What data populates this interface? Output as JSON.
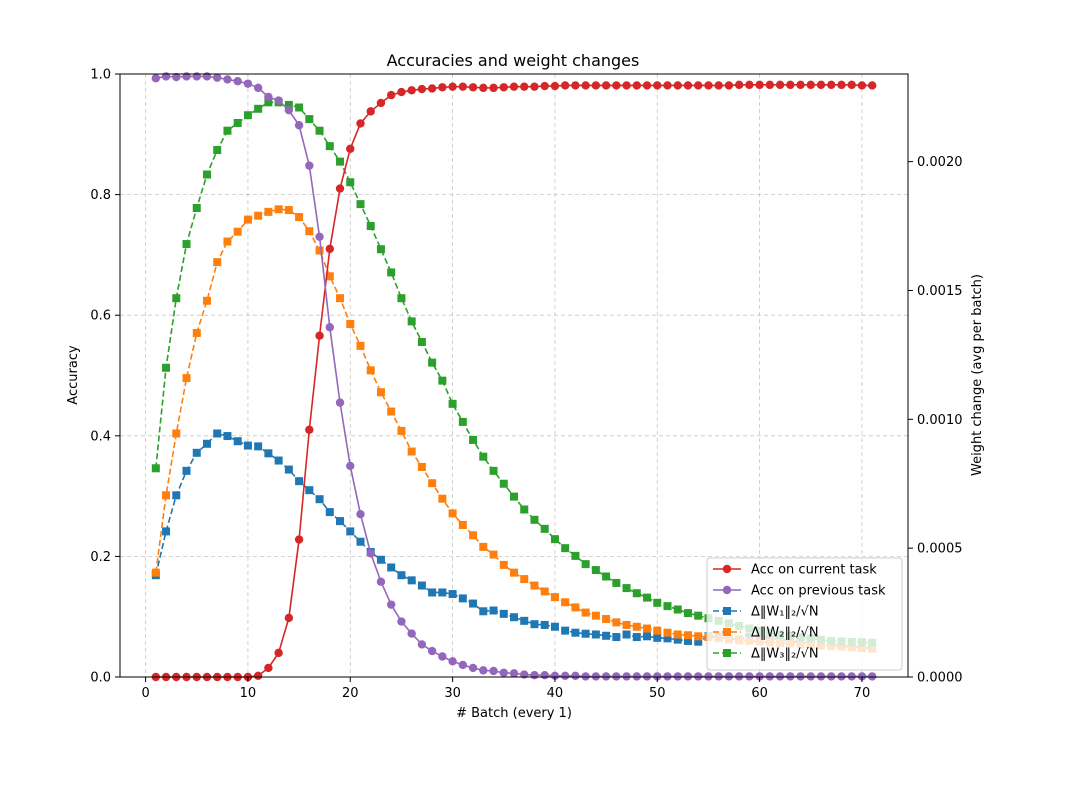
{
  "chart_data": {
    "type": "line",
    "title": "Accuracies and weight changes",
    "xlabel": "# Batch (every 1)",
    "ylabel": "Accuracy",
    "ylabel_right": "Weight change (avg per batch)",
    "xlim": [
      -2.5,
      74.5
    ],
    "ylim": [
      0,
      1.0
    ],
    "ylim_right": [
      0,
      0.00234
    ],
    "x_ticks": [
      0,
      10,
      20,
      30,
      40,
      50,
      60,
      70
    ],
    "y_ticks": [
      "0.0",
      "0.2",
      "0.4",
      "0.6",
      "0.8",
      "1.0"
    ],
    "y_ticks_right": [
      "0.0000",
      "0.0005",
      "0.0010",
      "0.0015",
      "0.0020"
    ],
    "y_right_tick_values": [
      0,
      0.0005,
      0.001,
      0.0015,
      0.002
    ],
    "grid": true,
    "legend_position": "lower right",
    "x": [
      1,
      2,
      3,
      4,
      5,
      6,
      7,
      8,
      9,
      10,
      11,
      12,
      13,
      14,
      15,
      16,
      17,
      18,
      19,
      20,
      21,
      22,
      23,
      24,
      25,
      26,
      27,
      28,
      29,
      30,
      31,
      32,
      33,
      34,
      35,
      36,
      37,
      38,
      39,
      40,
      41,
      42,
      43,
      44,
      45,
      46,
      47,
      48,
      49,
      50,
      51,
      52,
      53,
      54,
      55,
      56,
      57,
      58,
      59,
      60,
      61,
      62,
      63,
      64,
      65,
      66,
      67,
      68,
      69,
      70,
      71
    ],
    "series": [
      {
        "name": "Acc on current task",
        "axis": "left",
        "color": "#d62728",
        "linestyle": "solid",
        "marker": "circle",
        "values": [
          0,
          0,
          0,
          0,
          0,
          0,
          0,
          0,
          0,
          0,
          0.002,
          0.015,
          0.04,
          0.098,
          0.228,
          0.41,
          0.566,
          0.71,
          0.81,
          0.876,
          0.918,
          0.938,
          0.952,
          0.965,
          0.97,
          0.973,
          0.975,
          0.976,
          0.978,
          0.979,
          0.979,
          0.978,
          0.977,
          0.977,
          0.978,
          0.979,
          0.979,
          0.979,
          0.98,
          0.98,
          0.981,
          0.981,
          0.981,
          0.981,
          0.981,
          0.981,
          0.981,
          0.981,
          0.981,
          0.981,
          0.981,
          0.981,
          0.981,
          0.981,
          0.981,
          0.981,
          0.981,
          0.982,
          0.982,
          0.982,
          0.982,
          0.982,
          0.982,
          0.982,
          0.982,
          0.982,
          0.982,
          0.982,
          0.982,
          0.981,
          0.981
        ]
      },
      {
        "name": "Acc on previous task",
        "axis": "left",
        "color": "#9467bd",
        "linestyle": "solid",
        "marker": "circle",
        "values": [
          0.993,
          0.996,
          0.995,
          0.996,
          0.996,
          0.996,
          0.994,
          0.991,
          0.988,
          0.984,
          0.977,
          0.962,
          0.956,
          0.94,
          0.915,
          0.848,
          0.73,
          0.58,
          0.455,
          0.35,
          0.27,
          0.205,
          0.158,
          0.12,
          0.092,
          0.072,
          0.054,
          0.043,
          0.034,
          0.026,
          0.02,
          0.015,
          0.011,
          0.01,
          0.007,
          0.006,
          0.004,
          0.003,
          0.003,
          0.002,
          0.002,
          0.002,
          0.001,
          0.001,
          0.001,
          0.001,
          0.001,
          0.001,
          0.001,
          0.001,
          0.001,
          0.001,
          0.001,
          0.001,
          0.001,
          0.001,
          0.001,
          0.001,
          0.001,
          0.001,
          0.001,
          0.001,
          0.001,
          0.001,
          0.001,
          0.001,
          0.001,
          0.001,
          0.001,
          0.001,
          0.001
        ]
      },
      {
        "name": "Δ‖W₁‖₂/√N",
        "axis": "right",
        "color": "#1f77b4",
        "linestyle": "dashed",
        "marker": "square",
        "values": [
          0.000395,
          0.000565,
          0.000705,
          0.0008,
          0.00087,
          0.000905,
          0.000945,
          0.000935,
          0.000915,
          0.000898,
          0.000895,
          0.000868,
          0.00084,
          0.000805,
          0.00076,
          0.000725,
          0.00069,
          0.00064,
          0.000605,
          0.000565,
          0.000525,
          0.000485,
          0.000455,
          0.000425,
          0.000395,
          0.000375,
          0.000355,
          0.000328,
          0.000328,
          0.000322,
          0.000305,
          0.000285,
          0.000255,
          0.000258,
          0.000245,
          0.000232,
          0.000218,
          0.000205,
          0.000202,
          0.000195,
          0.00018,
          0.000172,
          0.000168,
          0.000165,
          0.00016,
          0.000155,
          0.000165,
          0.000155,
          0.000158,
          0.000152,
          0.00015,
          0.000145,
          0.00014,
          0.000137,
          0.000158,
          0.000155,
          0.000148,
          0.000145,
          0.000155,
          0.000158,
          0.000152,
          0.000145,
          0.00014,
          0.000135,
          0.000132,
          0.000128,
          0.000125,
          0.000122,
          0.000118,
          0.000115,
          0.000112
        ]
      },
      {
        "name": "Δ‖W₂‖₂/√N",
        "axis": "right",
        "color": "#ff7f0e",
        "linestyle": "dashed",
        "marker": "square",
        "values": [
          0.000405,
          0.000705,
          0.000945,
          0.00116,
          0.001335,
          0.00146,
          0.00161,
          0.00169,
          0.001728,
          0.001775,
          0.00179,
          0.001805,
          0.001815,
          0.001812,
          0.001785,
          0.00173,
          0.001655,
          0.001555,
          0.00147,
          0.00137,
          0.001285,
          0.00119,
          0.001105,
          0.00103,
          0.000955,
          0.000875,
          0.000815,
          0.000752,
          0.000692,
          0.000635,
          0.00059,
          0.00055,
          0.000505,
          0.000475,
          0.000435,
          0.000405,
          0.00038,
          0.000355,
          0.000332,
          0.00031,
          0.00029,
          0.00027,
          0.00025,
          0.000238,
          0.000225,
          0.000212,
          0.000202,
          0.000195,
          0.000188,
          0.00018,
          0.000172,
          0.000165,
          0.000162,
          0.000158,
          0.000155,
          0.00015,
          0.000145,
          0.000142,
          0.00014,
          0.000138,
          0.000135,
          0.000132,
          0.00013,
          0.000128,
          0.000125,
          0.000122,
          0.00012,
          0.000118,
          0.000115,
          0.000112,
          0.00011
        ]
      },
      {
        "name": "Δ‖W₃‖₂/√N",
        "axis": "right",
        "color": "#2ca02c",
        "linestyle": "dashed",
        "marker": "square",
        "values": [
          0.00081,
          0.0012,
          0.00147,
          0.00168,
          0.00182,
          0.00195,
          0.002045,
          0.00212,
          0.00215,
          0.00218,
          0.002205,
          0.00223,
          0.00223,
          0.00222,
          0.00221,
          0.002165,
          0.00212,
          0.00206,
          0.002,
          0.00192,
          0.001835,
          0.00175,
          0.00166,
          0.00157,
          0.00147,
          0.00138,
          0.0013,
          0.00122,
          0.00115,
          0.00106,
          0.00099,
          0.00092,
          0.000855,
          0.0008,
          0.00075,
          0.0007,
          0.00065,
          0.00061,
          0.000575,
          0.000535,
          0.0005,
          0.00047,
          0.000438,
          0.000415,
          0.00039,
          0.000365,
          0.000345,
          0.000325,
          0.000308,
          0.000288,
          0.000275,
          0.000262,
          0.000248,
          0.000238,
          0.000228,
          0.000218,
          0.000208,
          0.000198,
          0.000188,
          0.00018,
          0.000172,
          0.000165,
          0.00016,
          0.000155,
          0.00015,
          0.000145,
          0.00014,
          0.000138,
          0.000136,
          0.000135,
          0.000133
        ]
      }
    ]
  }
}
